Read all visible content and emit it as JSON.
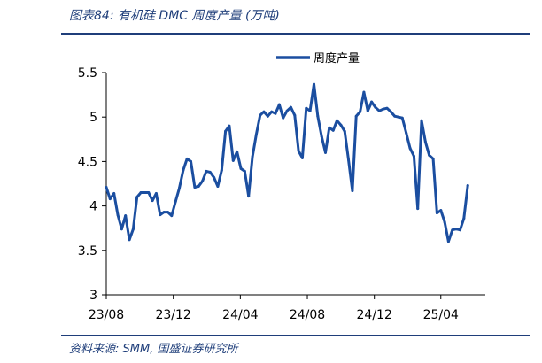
{
  "header": {
    "title": "图表84: 有机硅 DMC 周度产量 (万吨)"
  },
  "footer": {
    "source": "资料来源: SMM, 国盛证券研究所"
  },
  "colors": {
    "accent": "#1f3e7a",
    "series": "#1b4ea0",
    "axis": "#000000"
  },
  "chart_data": {
    "type": "line",
    "title": "",
    "xlabel": "",
    "ylabel": "",
    "ylim": [
      3,
      5.5
    ],
    "yticks": [
      "3",
      "3.5",
      "4",
      "4.5",
      "5",
      "5.5"
    ],
    "xlim": [
      "2023-08-01",
      "2025-06-21"
    ],
    "xticks": [
      {
        "label": "23/08",
        "date": "2023-08-01"
      },
      {
        "label": "23/12",
        "date": "2023-12-01"
      },
      {
        "label": "24/04",
        "date": "2024-04-01"
      },
      {
        "label": "24/08",
        "date": "2024-08-01"
      },
      {
        "label": "24/12",
        "date": "2024-12-01"
      },
      {
        "label": "25/04",
        "date": "2025-04-01"
      }
    ],
    "legend": {
      "position": "top-right"
    },
    "grid": false,
    "series": [
      {
        "name": "周度产量",
        "x": [
          "2023-08-01",
          "2023-08-08",
          "2023-08-15",
          "2023-08-22",
          "2023-08-29",
          "2023-09-05",
          "2023-09-12",
          "2023-09-19",
          "2023-09-26",
          "2023-10-03",
          "2023-10-10",
          "2023-10-17",
          "2023-10-24",
          "2023-10-31",
          "2023-11-07",
          "2023-11-14",
          "2023-11-21",
          "2023-11-28",
          "2023-12-05",
          "2023-12-12",
          "2023-12-19",
          "2023-12-26",
          "2024-01-02",
          "2024-01-09",
          "2024-01-16",
          "2024-01-23",
          "2024-01-30",
          "2024-02-06",
          "2024-02-13",
          "2024-02-20",
          "2024-02-27",
          "2024-03-05",
          "2024-03-12",
          "2024-03-19",
          "2024-03-26",
          "2024-04-02",
          "2024-04-09",
          "2024-04-16",
          "2024-04-23",
          "2024-04-30",
          "2024-05-07",
          "2024-05-14",
          "2024-05-21",
          "2024-05-28",
          "2024-06-04",
          "2024-06-11",
          "2024-06-18",
          "2024-06-25",
          "2024-07-02",
          "2024-07-09",
          "2024-07-16",
          "2024-07-23",
          "2024-07-30",
          "2024-08-06",
          "2024-08-13",
          "2024-08-20",
          "2024-08-27",
          "2024-09-03",
          "2024-09-10",
          "2024-09-17",
          "2024-09-24",
          "2024-10-01",
          "2024-10-08",
          "2024-10-15",
          "2024-10-22",
          "2024-10-29",
          "2024-11-05",
          "2024-11-12",
          "2024-11-19",
          "2024-11-26",
          "2024-12-03",
          "2024-12-10",
          "2024-12-17",
          "2024-12-24",
          "2024-12-31",
          "2025-01-07",
          "2025-01-14",
          "2025-01-21",
          "2025-01-28",
          "2025-02-04",
          "2025-02-11",
          "2025-02-18",
          "2025-02-25",
          "2025-03-04",
          "2025-03-11",
          "2025-03-18",
          "2025-03-25",
          "2025-04-01",
          "2025-04-08",
          "2025-04-15",
          "2025-04-22",
          "2025-04-29",
          "2025-05-06",
          "2025-05-13",
          "2025-05-20"
        ],
        "values": [
          4.21,
          4.08,
          4.14,
          3.9,
          3.74,
          3.89,
          3.62,
          3.74,
          4.1,
          4.15,
          4.15,
          4.15,
          4.06,
          4.14,
          3.9,
          3.93,
          3.93,
          3.89,
          4.05,
          4.2,
          4.4,
          4.53,
          4.5,
          4.21,
          4.22,
          4.28,
          4.39,
          4.38,
          4.32,
          4.22,
          4.4,
          4.84,
          4.9,
          4.51,
          4.61,
          4.42,
          4.39,
          4.11,
          4.55,
          4.8,
          5.02,
          5.06,
          5.01,
          5.06,
          5.04,
          5.14,
          4.99,
          5.07,
          5.11,
          5.02,
          4.62,
          4.54,
          5.1,
          5.07,
          5.37,
          5.01,
          4.78,
          4.6,
          4.88,
          4.85,
          4.96,
          4.91,
          4.84,
          4.52,
          4.17,
          5.01,
          5.06,
          5.28,
          5.07,
          5.17,
          5.11,
          5.07,
          5.09,
          5.1,
          5.06,
          5.01,
          5.0,
          4.99,
          4.82,
          4.65,
          4.56,
          3.97,
          4.96,
          4.72,
          4.57,
          4.53,
          3.92,
          3.95,
          3.82,
          3.6,
          3.73,
          3.74,
          3.73,
          3.86,
          4.23
        ]
      }
    ]
  }
}
